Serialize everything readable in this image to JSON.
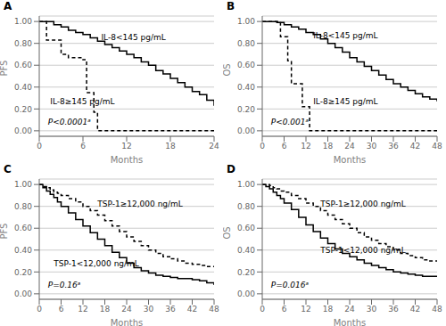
{
  "chart_data": [
    {
      "type": "step",
      "title": "A",
      "xlabel": "Months",
      "ylabel": "PFS",
      "color": "#000000",
      "grid": true,
      "xlim": [
        0,
        24
      ],
      "xticks": [
        0,
        6,
        12,
        18,
        24
      ],
      "ylim": [
        -0.05,
        1.05
      ],
      "yticks": [
        {
          "value": 0.0,
          "label": "0.00"
        },
        {
          "value": 0.2,
          "label": "0.20"
        },
        {
          "value": 0.4,
          "label": "0.40"
        },
        {
          "value": 0.6,
          "label": "0.60"
        },
        {
          "value": 0.8,
          "label": "0.80"
        },
        {
          "value": 1.0,
          "label": "1.00"
        }
      ],
      "series": [
        {
          "line_style": "solid",
          "x": [
            0,
            1,
            2,
            3,
            4,
            5,
            6,
            7,
            8,
            9,
            10,
            11,
            12,
            13,
            14,
            15,
            16,
            17,
            18,
            19,
            20,
            21,
            22,
            23,
            24
          ],
          "values": [
            1.0,
            1.0,
            0.97,
            0.95,
            0.92,
            0.9,
            0.88,
            0.85,
            0.82,
            0.79,
            0.76,
            0.73,
            0.7,
            0.67,
            0.63,
            0.6,
            0.55,
            0.52,
            0.48,
            0.44,
            0.4,
            0.36,
            0.33,
            0.28,
            0.23
          ]
        },
        {
          "line_style": "dashed",
          "x": [
            0,
            1,
            2,
            3,
            4,
            5,
            6,
            6.5,
            7,
            7.5,
            8,
            9,
            24
          ],
          "values": [
            1.0,
            0.83,
            0.83,
            0.7,
            0.67,
            0.67,
            0.65,
            0.35,
            0.35,
            0.17,
            0.0,
            0.0,
            0.0
          ]
        }
      ],
      "annotations": [
        {
          "text": "IL-8<145 pg/mL",
          "x": 8.5,
          "y": 0.86
        },
        {
          "text": "IL-8≥145 pg/mL",
          "x": 1.5,
          "y": 0.27
        },
        {
          "text": "P<0.0001ᵃ"
        }
      ]
    },
    {
      "type": "step",
      "title": "B",
      "xlabel": "Months",
      "ylabel": "OS",
      "color": "#000000",
      "grid": true,
      "xlim": [
        0,
        48
      ],
      "xticks": [
        0,
        6,
        12,
        18,
        24,
        30,
        36,
        42,
        48
      ],
      "ylim": [
        -0.05,
        1.05
      ],
      "yticks": [
        {
          "value": 0.0,
          "label": "0.00"
        },
        {
          "value": 0.2,
          "label": "0.20"
        },
        {
          "value": 0.4,
          "label": "0.40"
        },
        {
          "value": 0.6,
          "label": "0.60"
        },
        {
          "value": 0.8,
          "label": "0.80"
        },
        {
          "value": 1.0,
          "label": "1.00"
        }
      ],
      "series": [
        {
          "line_style": "solid",
          "x": [
            0,
            2,
            4,
            6,
            8,
            10,
            12,
            14,
            16,
            18,
            20,
            22,
            24,
            26,
            28,
            30,
            32,
            34,
            36,
            38,
            40,
            42,
            44,
            46,
            48
          ],
          "values": [
            1.0,
            1.0,
            0.99,
            0.97,
            0.95,
            0.93,
            0.9,
            0.88,
            0.84,
            0.8,
            0.76,
            0.72,
            0.67,
            0.63,
            0.59,
            0.55,
            0.51,
            0.47,
            0.43,
            0.4,
            0.37,
            0.34,
            0.31,
            0.29,
            0.27
          ]
        },
        {
          "line_style": "dashed",
          "x": [
            0,
            3,
            5,
            6,
            7,
            8,
            9,
            10,
            11,
            12,
            13,
            14,
            48
          ],
          "values": [
            1.0,
            1.0,
            0.86,
            0.86,
            0.64,
            0.43,
            0.43,
            0.43,
            0.22,
            0.22,
            0.0,
            0.0,
            0.0
          ]
        }
      ],
      "annotations": [
        {
          "text": "IL-8<145 pg/mL",
          "x": 14,
          "y": 0.87
        },
        {
          "text": "IL-8≥145 pg/mL",
          "x": 14,
          "y": 0.27
        },
        {
          "text": "P<0.001ᵃ"
        }
      ]
    },
    {
      "type": "step",
      "title": "C",
      "xlabel": "Months",
      "ylabel": "PFS",
      "color": "#000000",
      "grid": true,
      "xlim": [
        0,
        48
      ],
      "xticks": [
        0,
        6,
        12,
        18,
        24,
        30,
        36,
        42,
        48
      ],
      "ylim": [
        -0.05,
        1.05
      ],
      "yticks": [
        {
          "value": 0.0,
          "label": "0.00"
        },
        {
          "value": 0.2,
          "label": "0.20"
        },
        {
          "value": 0.4,
          "label": "0.40"
        },
        {
          "value": 0.6,
          "label": "0.60"
        },
        {
          "value": 0.8,
          "label": "0.80"
        },
        {
          "value": 1.0,
          "label": "1.00"
        }
      ],
      "series": [
        {
          "line_style": "dashed",
          "x": [
            0,
            1,
            2,
            3,
            4,
            5,
            6,
            8,
            10,
            12,
            14,
            16,
            18,
            20,
            22,
            24,
            26,
            28,
            30,
            32,
            34,
            36,
            38,
            40,
            42,
            44,
            46,
            48
          ],
          "values": [
            1.0,
            0.98,
            0.97,
            0.95,
            0.93,
            0.92,
            0.9,
            0.87,
            0.84,
            0.8,
            0.76,
            0.72,
            0.67,
            0.62,
            0.57,
            0.52,
            0.48,
            0.44,
            0.4,
            0.37,
            0.34,
            0.32,
            0.3,
            0.28,
            0.27,
            0.26,
            0.25,
            0.25
          ]
        },
        {
          "line_style": "solid",
          "x": [
            0,
            1,
            2,
            3,
            4,
            5,
            6,
            8,
            10,
            12,
            14,
            16,
            18,
            20,
            22,
            24,
            26,
            28,
            30,
            32,
            34,
            36,
            38,
            40,
            42,
            44,
            46,
            48
          ],
          "values": [
            1.0,
            0.97,
            0.94,
            0.91,
            0.88,
            0.84,
            0.8,
            0.74,
            0.68,
            0.62,
            0.56,
            0.5,
            0.44,
            0.38,
            0.33,
            0.28,
            0.24,
            0.21,
            0.19,
            0.17,
            0.16,
            0.15,
            0.14,
            0.14,
            0.13,
            0.12,
            0.1,
            0.08
          ]
        }
      ],
      "annotations": [
        {
          "text": "TSP-1≥12,000 ng/mL",
          "x": 16,
          "y": 0.82
        },
        {
          "text": "TSP-1<12,000 ng/mL",
          "x": 4,
          "y": 0.28
        },
        {
          "text": "P=0.16ᵃ"
        }
      ]
    },
    {
      "type": "step",
      "title": "D",
      "xlabel": "Months",
      "ylabel": "OS",
      "color": "#000000",
      "grid": true,
      "xlim": [
        0,
        48
      ],
      "xticks": [
        0,
        6,
        12,
        18,
        24,
        30,
        36,
        42,
        48
      ],
      "ylim": [
        -0.05,
        1.05
      ],
      "yticks": [
        {
          "value": 0.0,
          "label": "0.00"
        },
        {
          "value": 0.2,
          "label": "0.20"
        },
        {
          "value": 0.4,
          "label": "0.40"
        },
        {
          "value": 0.6,
          "label": "0.60"
        },
        {
          "value": 0.8,
          "label": "0.80"
        },
        {
          "value": 1.0,
          "label": "1.00"
        }
      ],
      "series": [
        {
          "line_style": "dashed",
          "x": [
            0,
            1,
            2,
            3,
            4,
            5,
            6,
            8,
            10,
            12,
            14,
            16,
            18,
            20,
            22,
            24,
            26,
            28,
            30,
            32,
            34,
            36,
            38,
            40,
            42,
            44,
            46,
            48
          ],
          "values": [
            1.0,
            1.0,
            0.99,
            0.97,
            0.96,
            0.94,
            0.93,
            0.9,
            0.87,
            0.83,
            0.8,
            0.76,
            0.72,
            0.68,
            0.64,
            0.6,
            0.56,
            0.52,
            0.49,
            0.46,
            0.43,
            0.4,
            0.37,
            0.35,
            0.33,
            0.31,
            0.3,
            0.3
          ]
        },
        {
          "line_style": "solid",
          "x": [
            0,
            1,
            2,
            3,
            4,
            5,
            6,
            8,
            10,
            12,
            14,
            16,
            18,
            20,
            22,
            24,
            26,
            28,
            30,
            32,
            34,
            36,
            38,
            40,
            42,
            44,
            46,
            48
          ],
          "values": [
            1.0,
            0.98,
            0.96,
            0.93,
            0.9,
            0.87,
            0.83,
            0.77,
            0.7,
            0.63,
            0.57,
            0.51,
            0.46,
            0.41,
            0.37,
            0.34,
            0.31,
            0.28,
            0.26,
            0.24,
            0.22,
            0.2,
            0.19,
            0.18,
            0.17,
            0.16,
            0.16,
            0.16
          ]
        }
      ],
      "annotations": [
        {
          "text": "TSP-1≥12,000 ng/mL",
          "x": 16,
          "y": 0.82
        },
        {
          "text": "TSP-1<12,000 ng/mL",
          "x": 16,
          "y": 0.4
        },
        {
          "text": "P=0.016ᵃ"
        }
      ]
    }
  ]
}
